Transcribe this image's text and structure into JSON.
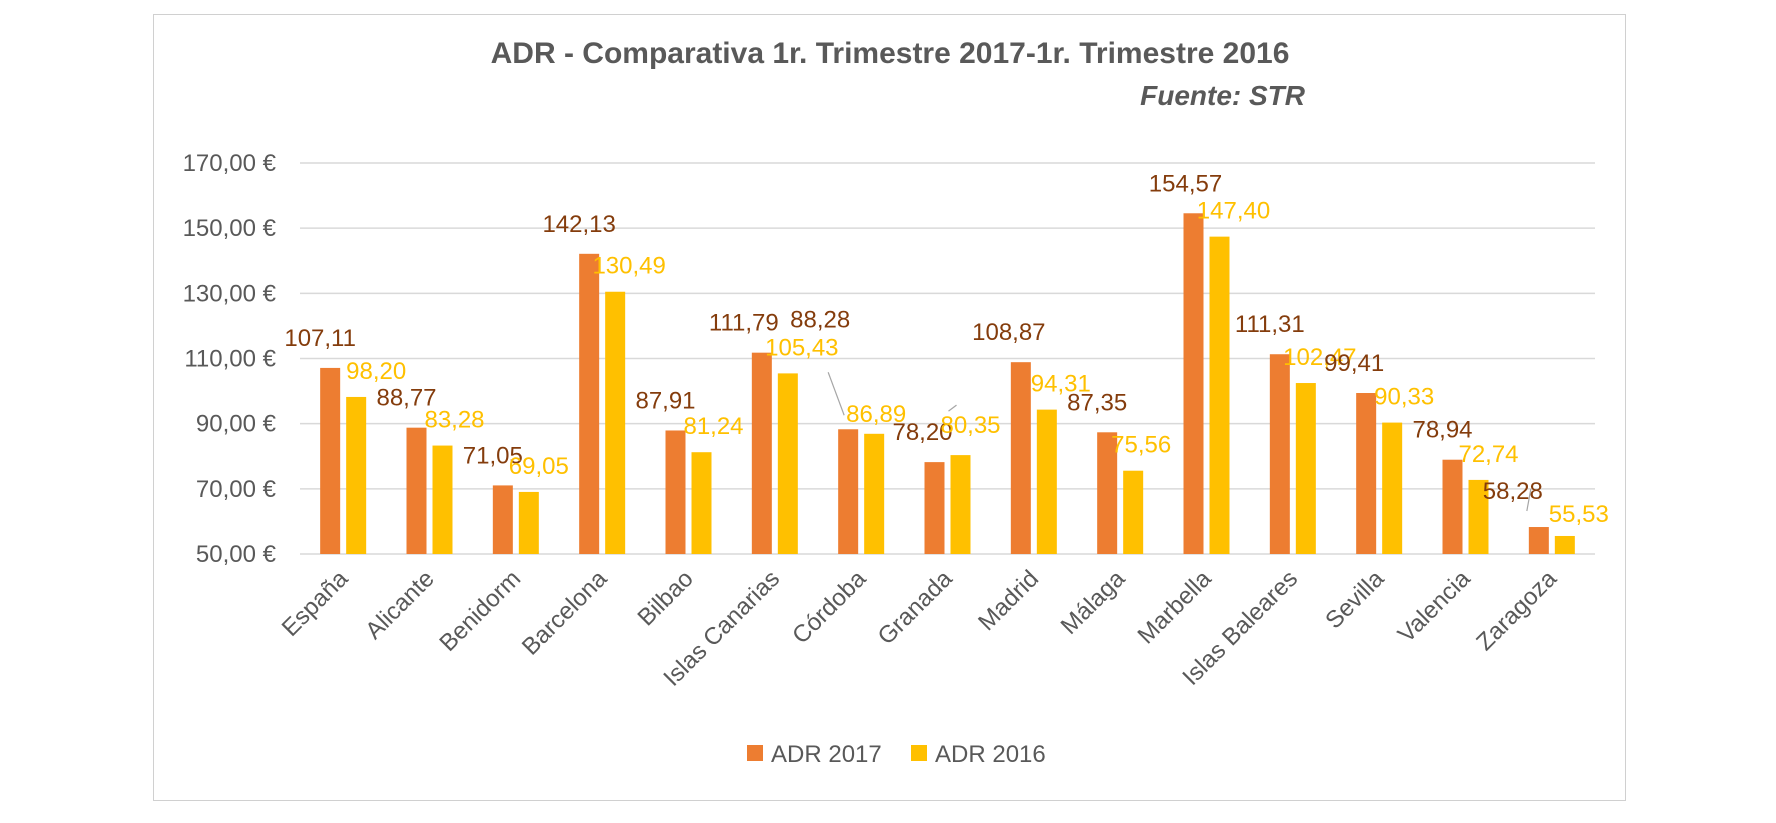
{
  "chart_data": {
    "type": "bar",
    "title": "ADR - Comparativa 1r. Trimestre 2017-1r. Trimestre 2016",
    "subtitle": "Fuente: STR",
    "categories": [
      "España",
      "Alicante",
      "Benidorm",
      "Barcelona",
      "Bilbao",
      "Islas Canarias",
      "Córdoba",
      "Granada",
      "Madrid",
      "Málaga",
      "Marbella",
      "Islas Baleares",
      "Sevilla",
      "Valencia",
      "Zaragoza"
    ],
    "series": [
      {
        "name": "ADR 2017",
        "color": "#ed7d31",
        "label_color": "#843c0c",
        "values": [
          107.11,
          88.77,
          71.05,
          142.13,
          87.91,
          111.79,
          88.28,
          78.2,
          108.87,
          87.35,
          154.57,
          111.31,
          99.41,
          78.94,
          58.28
        ],
        "labels": [
          "107,11",
          "88,77",
          "71,05",
          "142,13",
          "87,91",
          "111,79",
          "88,28",
          "78,20",
          "108,87",
          "87,35",
          "154,57",
          "111,31",
          "99,41",
          "78,94",
          "58,28"
        ]
      },
      {
        "name": "ADR 2016",
        "color": "#ffc000",
        "label_color": "#ffc000",
        "values": [
          98.2,
          83.28,
          69.05,
          130.49,
          81.24,
          105.43,
          86.89,
          80.35,
          94.31,
          75.56,
          147.4,
          102.47,
          90.33,
          72.74,
          55.53
        ],
        "labels": [
          "98,20",
          "83,28",
          "69,05",
          "130,49",
          "81,24",
          "105,43",
          "86,89",
          "80,35",
          "94,31",
          "75,56",
          "147,40",
          "102,47",
          "90,33",
          "72,74",
          "55,53"
        ]
      }
    ],
    "ylim": [
      50,
      170
    ],
    "yticks": [
      "50,00 €",
      "70,00 €",
      "90,00 €",
      "110,00 €",
      "130,00 €",
      "150,00 €",
      "170,00 €"
    ],
    "ytick_values": [
      50,
      70,
      90,
      110,
      130,
      150,
      170
    ],
    "grid": true,
    "legend_position": "bottom",
    "gridline_color": "#d9d9d9",
    "axis_text_color": "#595959"
  }
}
